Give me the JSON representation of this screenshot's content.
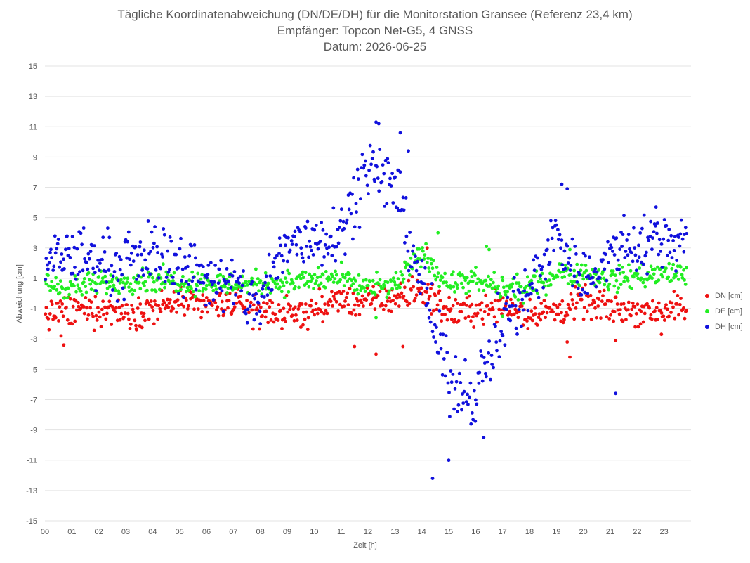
{
  "chart_data": {
    "type": "scatter",
    "title_lines": [
      "Tägliche Koordinatenabweichung (DN/DE/DH) für die Monitorstation Gransee (Referenz 23,4 km)",
      "Empfänger: Topcon Net-G5, 4 GNSS",
      "Datum: 2026-06-25"
    ],
    "xlabel": "Zeit [h]",
    "ylabel": "Abweichung [cm]",
    "xlim": [
      0,
      24
    ],
    "ylim": [
      -15,
      15
    ],
    "x_tick_labels": [
      "00",
      "01",
      "02",
      "03",
      "04",
      "05",
      "06",
      "07",
      "08",
      "09",
      "10",
      "11",
      "12",
      "13",
      "14",
      "15",
      "16",
      "17",
      "18",
      "19",
      "20",
      "21",
      "22",
      "23"
    ],
    "y_ticks": [
      15,
      13,
      11,
      9,
      7,
      5,
      3,
      1,
      -1,
      -3,
      -5,
      -7,
      -9,
      -11,
      -13,
      -15
    ],
    "grid": "horizontal",
    "legend_position": "right",
    "series": [
      {
        "name": "DN [cm]",
        "color": "#ee1111",
        "hourly_mean": [
          -1.3,
          -1.2,
          -1.1,
          -1.2,
          -1.0,
          -0.6,
          -0.9,
          -0.6,
          -1.2,
          -1.4,
          -1.1,
          -0.5,
          -0.6,
          -0.3,
          0.2,
          -1.2,
          -1.1,
          -0.7,
          -1.4,
          -1.2,
          -0.6,
          -1.0,
          -1.1,
          -1.1
        ],
        "spread": 0.5,
        "points_per_hour": 28,
        "outliers": [
          [
            0.7,
            -3.4
          ],
          [
            0.6,
            -2.8
          ],
          [
            3.4,
            -2.4
          ],
          [
            11.5,
            -3.5
          ],
          [
            12.3,
            -4.0
          ],
          [
            13.3,
            -3.5
          ],
          [
            14.2,
            3.0
          ],
          [
            19.5,
            -4.2
          ],
          [
            19.4,
            -3.2
          ],
          [
            21.2,
            -3.1
          ],
          [
            22.9,
            -2.7
          ]
        ]
      },
      {
        "name": "DE [cm]",
        "color": "#22ee22",
        "hourly_mean": [
          0.6,
          0.4,
          0.6,
          0.9,
          0.9,
          0.8,
          0.7,
          0.6,
          0.7,
          0.7,
          0.9,
          1.0,
          0.3,
          0.5,
          2.7,
          0.6,
          0.8,
          0.3,
          0.3,
          1.4,
          1.3,
          0.9,
          1.2,
          1.3
        ],
        "spread": 0.4,
        "points_per_hour": 28,
        "outliers": [
          [
            14.6,
            4.0
          ],
          [
            16.4,
            3.1
          ],
          [
            16.5,
            2.9
          ],
          [
            19.5,
            2.9
          ],
          [
            12.3,
            -1.6
          ],
          [
            17.0,
            -1.5
          ]
        ]
      },
      {
        "name": "DH [cm]",
        "color": "#1111dd",
        "hourly_mean": [
          1.8,
          2.6,
          2.2,
          1.7,
          2.8,
          2.0,
          1.1,
          0.4,
          -0.8,
          3.4,
          3.6,
          4.2,
          8.5,
          7.0,
          0.8,
          -5.8,
          -6.6,
          -1.8,
          0.2,
          4.0,
          0.7,
          2.6,
          3.2,
          3.6
        ],
        "spread": 1.0,
        "points_per_hour": 28,
        "outliers": [
          [
            12.3,
            11.3
          ],
          [
            12.4,
            11.2
          ],
          [
            13.2,
            10.6
          ],
          [
            13.5,
            9.4
          ],
          [
            14.4,
            -12.2
          ],
          [
            15.0,
            -11.0
          ],
          [
            16.3,
            -9.5
          ],
          [
            19.2,
            7.2
          ],
          [
            19.4,
            6.9
          ],
          [
            21.2,
            -6.6
          ],
          [
            22.7,
            5.7
          ]
        ]
      }
    ]
  }
}
